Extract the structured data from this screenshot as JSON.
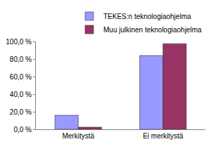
{
  "chart_data": {
    "type": "bar",
    "categories": [
      "Merkitystä",
      "Ei merkitystä"
    ],
    "series": [
      {
        "name": "TEKES:n teknologiaohjelma",
        "color": "#9999ff",
        "values": [
          16.0,
          84.0
        ]
      },
      {
        "name": "Muu julkinen teknologiaohjelma",
        "color": "#993366",
        "values": [
          2.5,
          97.5
        ]
      }
    ],
    "ylim": [
      0,
      100
    ],
    "yticks": [
      {
        "value": 0,
        "label": "0,0 %"
      },
      {
        "value": 20,
        "label": "20,0 %"
      },
      {
        "value": 40,
        "label": "40,0 %"
      },
      {
        "value": 60,
        "label": "60,0 %"
      },
      {
        "value": 80,
        "label": "80,0 %"
      },
      {
        "value": 100,
        "label": "100,0 %"
      }
    ],
    "grid": false,
    "legend": "upper right"
  }
}
